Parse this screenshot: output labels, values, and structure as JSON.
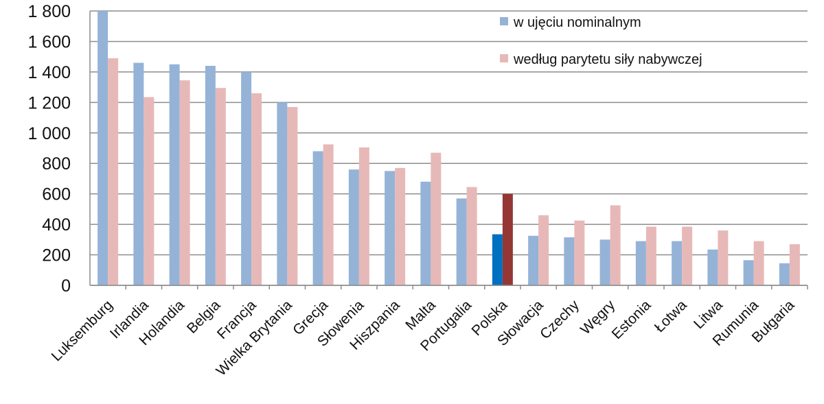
{
  "chart_data": {
    "type": "bar",
    "categories": [
      "Luksemburg",
      "Irlandia",
      "Holandia",
      "Belgia",
      "Francja",
      "Wielka Brytania",
      "Grecja",
      "Słowenia",
      "Hiszpania",
      "Malta",
      "Portugalia",
      "Polska",
      "Słowacja",
      "Czechy",
      "Węgry",
      "Estonia",
      "Łotwa",
      "Litwa",
      "Rumunia",
      "Bułgaria"
    ],
    "series": [
      {
        "name": "w ujęciu nominalnym",
        "color": "#95b3d7",
        "highlight_color": "#0070c0",
        "values": [
          1800,
          1460,
          1450,
          1440,
          1400,
          1200,
          880,
          760,
          750,
          680,
          570,
          335,
          325,
          315,
          300,
          290,
          290,
          235,
          165,
          145
        ]
      },
      {
        "name": "według parytetu siły nabywczej",
        "color": "#e6b9b8",
        "highlight_color": "#953735",
        "values": [
          1490,
          1235,
          1345,
          1295,
          1260,
          1170,
          925,
          905,
          770,
          870,
          645,
          600,
          460,
          425,
          525,
          385,
          385,
          360,
          290,
          270
        ]
      }
    ],
    "highlight_category": "Polska",
    "yticks": [
      "0",
      "200",
      "400",
      "600",
      "800",
      "1 000",
      "1 200",
      "1 400",
      "1 600",
      "1 800"
    ],
    "ylim": [
      0,
      1800
    ],
    "grid": true,
    "legend_position": "top-right"
  }
}
